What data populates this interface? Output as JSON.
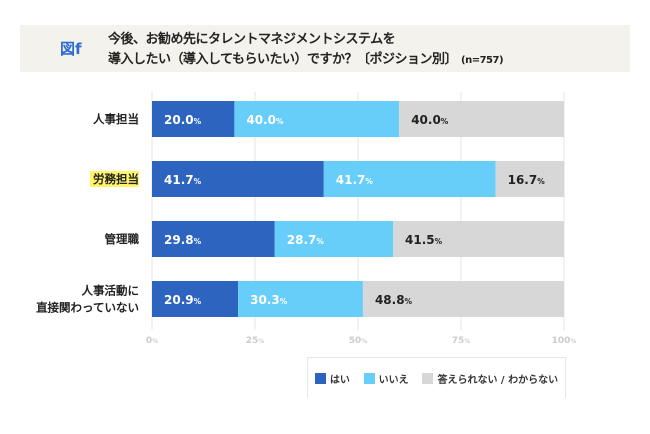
{
  "header": {
    "figure_label": "図f",
    "title_line1": "今後、お勧め先にタレントマネジメントシステムを",
    "title_line2": "導入したい（導入してもらいたい）ですか？〔ポジション別〕",
    "n_label": "(n=757)"
  },
  "chart_data": {
    "type": "bar",
    "orientation": "horizontal",
    "stacked": true,
    "title": "今後、お勧め先にタレントマネジメントシステムを導入したい（導入してもらいたい）ですか？〔ポジション別〕(n=757)",
    "categories": [
      "人事担当",
      "労務担当",
      "管理職",
      "人事活動に\n直接関わっていない"
    ],
    "highlighted_category": "労務担当",
    "series": [
      {
        "name": "はい",
        "color": "#2d64c0",
        "values": [
          20.0,
          41.7,
          29.8,
          20.9
        ]
      },
      {
        "name": "いいえ",
        "color": "#66cef9",
        "values": [
          40.0,
          41.7,
          28.7,
          30.3
        ]
      },
      {
        "name": "答えられない / わからない",
        "color": "#d7d7d7",
        "values": [
          40.0,
          16.7,
          41.5,
          48.8
        ]
      }
    ],
    "xlim": [
      0,
      100
    ],
    "xticks": [
      0,
      25,
      50,
      75,
      100
    ],
    "tick_suffix": "%",
    "grid": true,
    "legend_position": "bottom-right"
  }
}
